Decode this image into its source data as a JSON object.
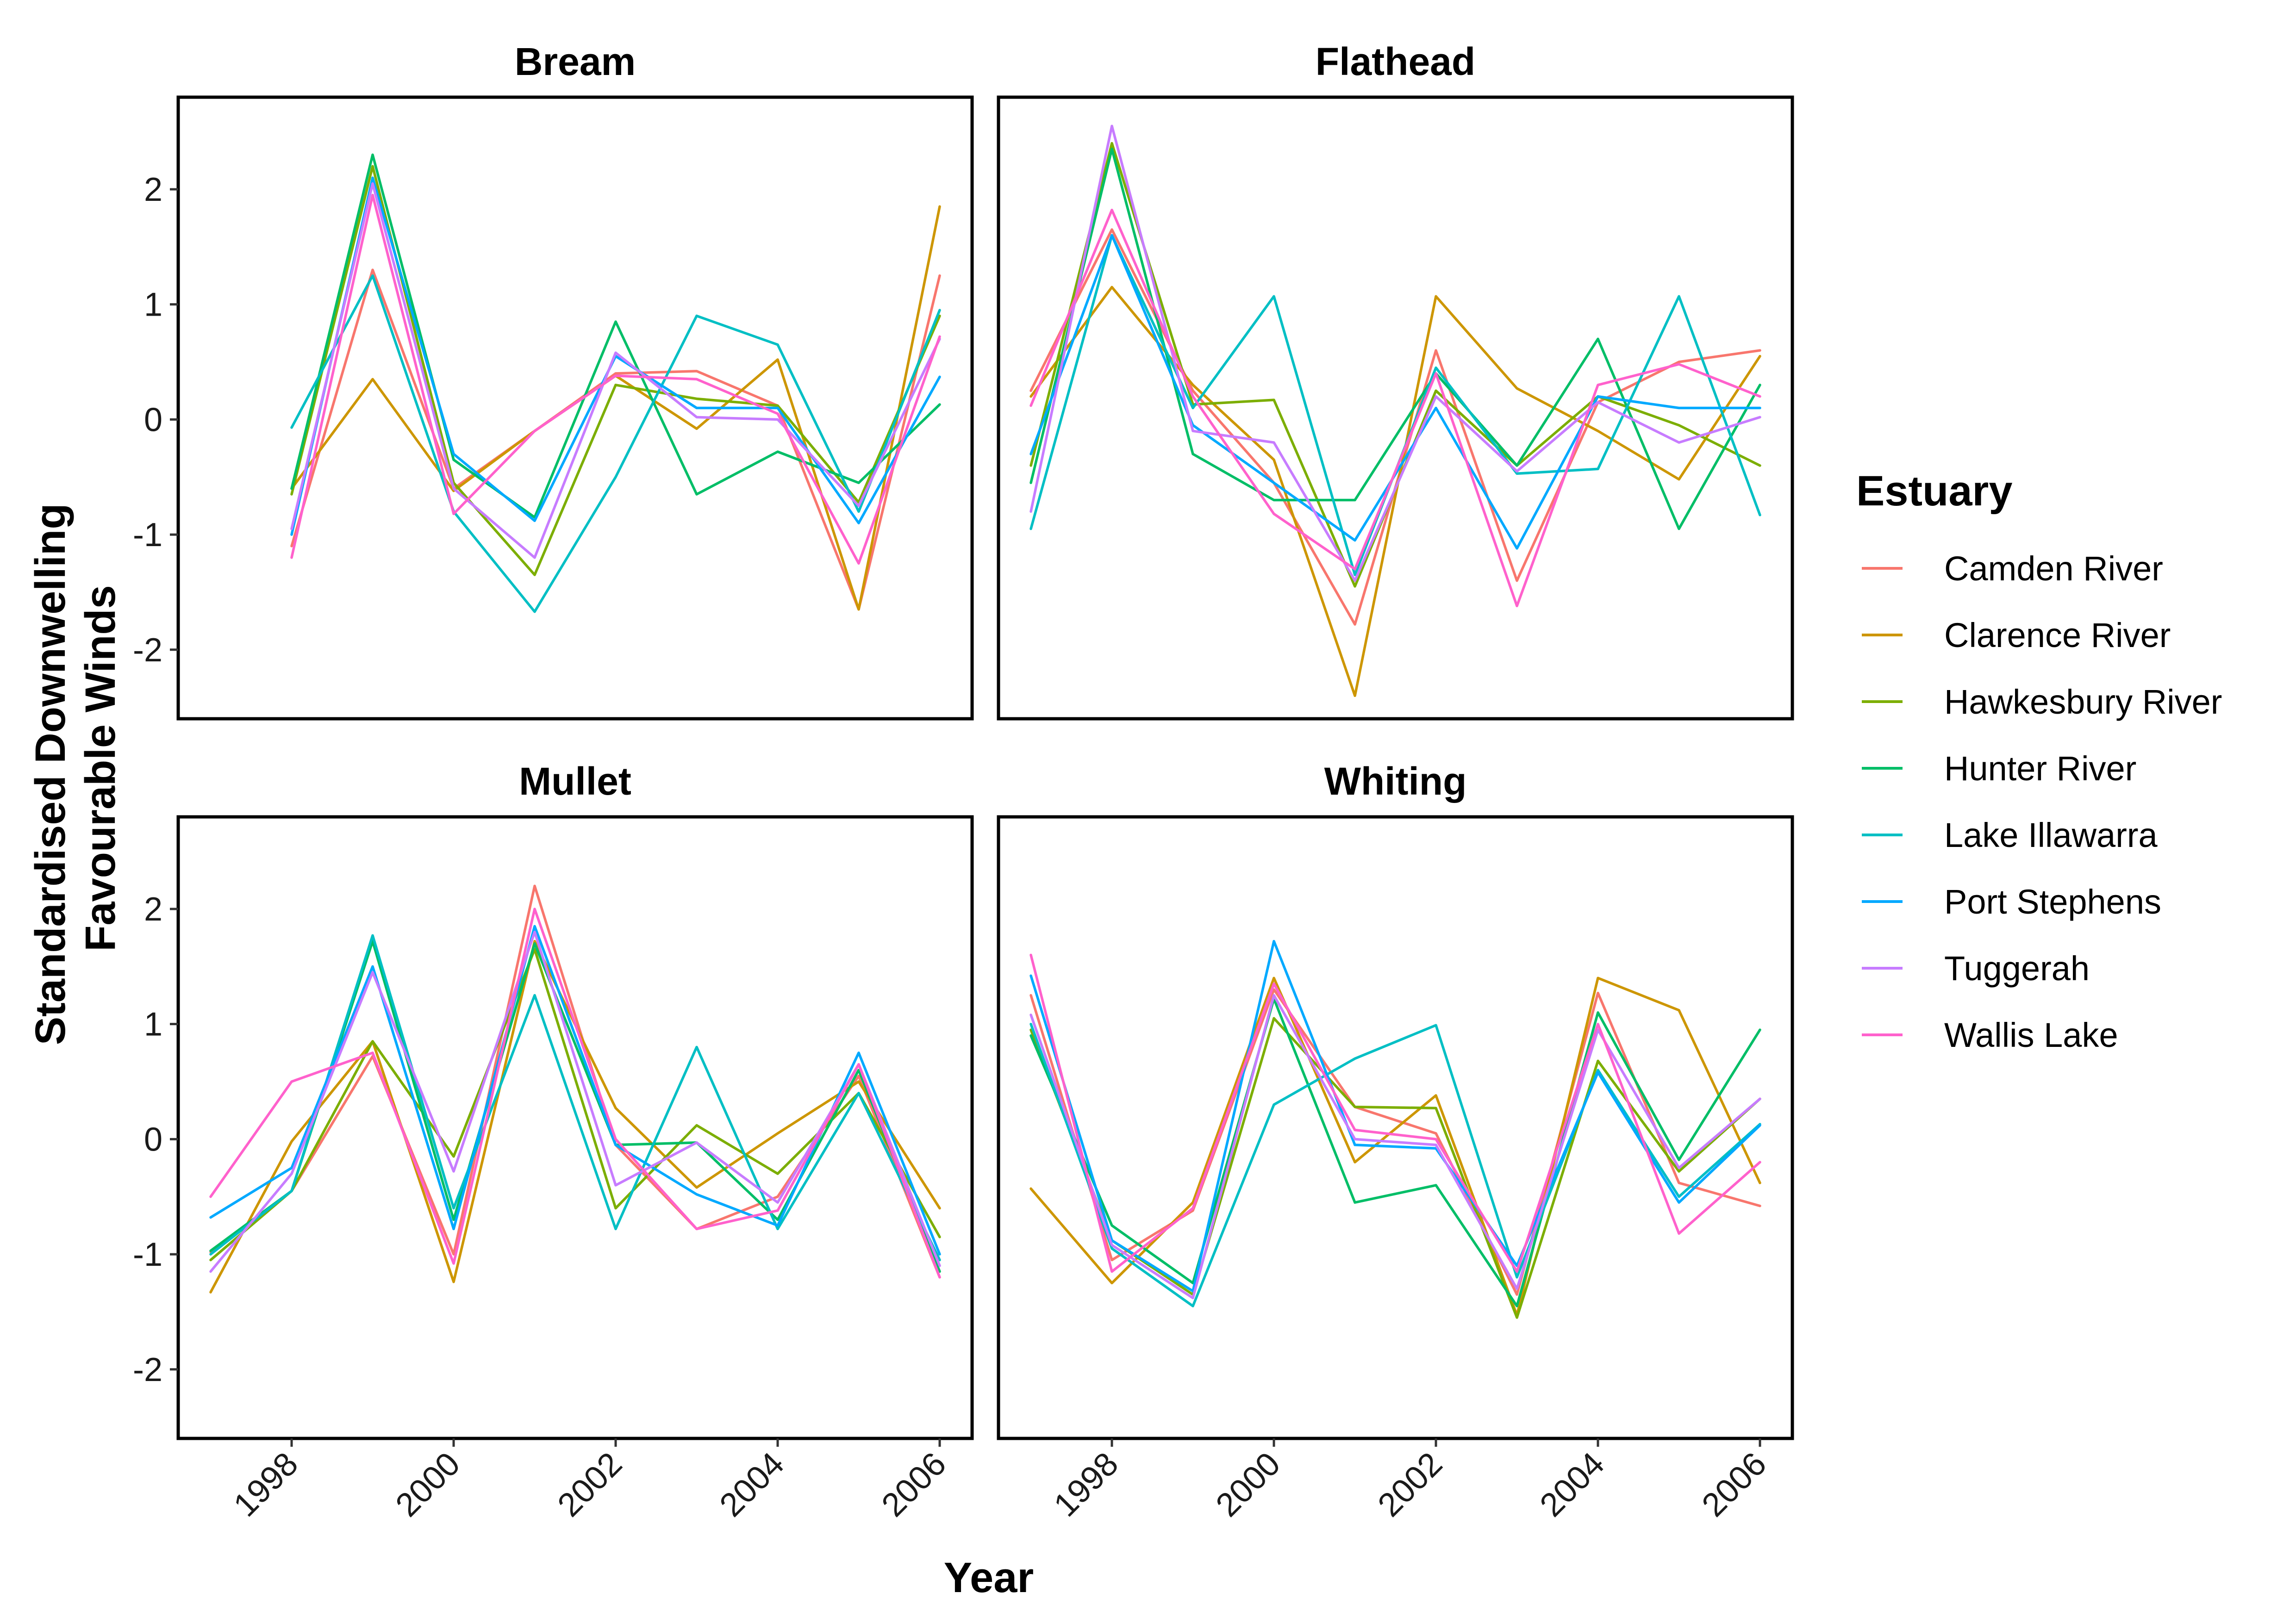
{
  "chart_data": {
    "type": "line",
    "xlabel": "Year",
    "ylabel_lines": [
      "Standardised Downwelling",
      "Favourable Winds"
    ],
    "x": [
      1997,
      1998,
      1999,
      2000,
      2001,
      2002,
      2003,
      2004,
      2005,
      2006
    ],
    "xlim": [
      1996.6,
      2006.4
    ],
    "ylim": [
      -2.6,
      2.8
    ],
    "x_ticks": [
      1998,
      2000,
      2002,
      2004,
      2006
    ],
    "y_ticks": [
      -2,
      -1,
      0,
      1,
      2
    ],
    "grid": false,
    "legend": {
      "title": "Estuary",
      "position": "right"
    },
    "colors": {
      "Camden River": "#F8766D",
      "Clarence River": "#CD9600",
      "Hawkesbury River": "#7CAE00",
      "Hunter River": "#00BE67",
      "Lake Illawarra": "#00BFC4",
      "Port Stephens": "#00A9FF",
      "Tuggerah": "#C77CFF",
      "Wallis Lake": "#FF61CC"
    },
    "panels": [
      {
        "title": "Bream",
        "series": [
          {
            "name": "Camden River",
            "values": [
              null,
              -1.1,
              1.3,
              -0.6,
              -0.1,
              0.4,
              0.42,
              0.12,
              -1.65,
              1.25
            ]
          },
          {
            "name": "Clarence River",
            "values": [
              null,
              -0.6,
              0.35,
              -0.62,
              -0.1,
              0.38,
              -0.08,
              0.52,
              -1.65,
              1.85
            ]
          },
          {
            "name": "Hawkesbury River",
            "values": [
              null,
              -0.65,
              2.2,
              -0.55,
              -1.35,
              0.3,
              0.18,
              0.12,
              -0.72,
              0.9
            ]
          },
          {
            "name": "Hunter River",
            "values": [
              null,
              -0.6,
              2.3,
              -0.35,
              -0.85,
              0.85,
              -0.65,
              -0.28,
              -0.55,
              0.13
            ]
          },
          {
            "name": "Lake Illawarra",
            "values": [
              null,
              -0.07,
              1.25,
              -0.8,
              -1.67,
              -0.5,
              0.9,
              0.65,
              -0.8,
              0.95
            ]
          },
          {
            "name": "Port Stephens",
            "values": [
              null,
              -1.0,
              2.1,
              -0.3,
              -0.88,
              0.55,
              0.1,
              0.1,
              -0.9,
              0.37
            ]
          },
          {
            "name": "Tuggerah",
            "values": [
              null,
              -0.95,
              2.05,
              -0.6,
              -1.2,
              0.58,
              0.02,
              0.0,
              -0.75,
              0.7
            ]
          },
          {
            "name": "Wallis Lake",
            "values": [
              null,
              -1.2,
              1.95,
              -0.82,
              -0.1,
              0.38,
              0.35,
              0.05,
              -1.25,
              0.72
            ]
          }
        ]
      },
      {
        "title": "Flathead",
        "series": [
          {
            "name": "Camden River",
            "values": [
              0.25,
              1.65,
              0.25,
              -0.55,
              -1.78,
              0.6,
              -1.4,
              0.15,
              0.5,
              0.6
            ]
          },
          {
            "name": "Clarence River",
            "values": [
              0.2,
              1.15,
              0.3,
              -0.35,
              -2.4,
              1.07,
              0.27,
              -0.1,
              -0.52,
              0.55
            ]
          },
          {
            "name": "Hawkesbury River",
            "values": [
              -0.4,
              2.4,
              0.13,
              0.17,
              -1.45,
              0.25,
              -0.4,
              0.2,
              -0.05,
              -0.4
            ]
          },
          {
            "name": "Hunter River",
            "values": [
              -0.55,
              2.35,
              -0.3,
              -0.7,
              -0.7,
              0.4,
              -0.4,
              0.7,
              -0.95,
              0.3
            ]
          },
          {
            "name": "Lake Illawarra",
            "values": [
              -0.95,
              1.6,
              0.1,
              1.07,
              -1.35,
              0.45,
              -0.47,
              -0.43,
              1.07,
              -0.83
            ]
          },
          {
            "name": "Port Stephens",
            "values": [
              -0.3,
              1.6,
              -0.05,
              -0.55,
              -1.05,
              0.1,
              -1.12,
              0.2,
              0.1,
              0.1
            ]
          },
          {
            "name": "Tuggerah",
            "values": [
              -0.8,
              2.55,
              -0.1,
              -0.2,
              -1.4,
              0.2,
              -0.45,
              0.15,
              -0.2,
              0.02
            ]
          },
          {
            "name": "Wallis Lake",
            "values": [
              0.12,
              1.82,
              0.2,
              -0.82,
              -1.3,
              0.4,
              -1.62,
              0.3,
              0.48,
              0.2
            ]
          }
        ]
      },
      {
        "title": "Mullet",
        "series": [
          {
            "name": "Camden River",
            "values": [
              -0.98,
              -0.45,
              0.72,
              -1.0,
              2.2,
              -0.05,
              -0.78,
              -0.5,
              0.55,
              -1.2
            ]
          },
          {
            "name": "Clarence River",
            "values": [
              -1.33,
              -0.02,
              0.85,
              -1.24,
              1.72,
              0.27,
              -0.42,
              0.05,
              0.5,
              -0.6
            ]
          },
          {
            "name": "Hawkesbury River",
            "values": [
              -1.05,
              -0.45,
              0.85,
              -0.15,
              1.65,
              -0.6,
              0.12,
              -0.3,
              0.4,
              -0.85
            ]
          },
          {
            "name": "Hunter River",
            "values": [
              -0.97,
              -0.45,
              1.72,
              -0.7,
              1.7,
              -0.05,
              -0.03,
              -0.7,
              0.6,
              -1.15
            ]
          },
          {
            "name": "Lake Illawarra",
            "values": [
              -1.0,
              -0.45,
              1.77,
              -0.6,
              1.25,
              -0.78,
              0.8,
              -0.78,
              0.4,
              -1.05
            ]
          },
          {
            "name": "Port Stephens",
            "values": [
              -0.68,
              -0.25,
              1.5,
              -0.78,
              1.85,
              -0.05,
              -0.48,
              -0.75,
              0.75,
              -1.0
            ]
          },
          {
            "name": "Tuggerah",
            "values": [
              -1.15,
              -0.3,
              1.45,
              -0.28,
              1.8,
              -0.4,
              -0.03,
              -0.55,
              0.65,
              -1.1
            ]
          },
          {
            "name": "Wallis Lake",
            "values": [
              -0.5,
              0.5,
              0.75,
              -1.08,
              2.0,
              0.0,
              -0.78,
              -0.62,
              0.65,
              -1.2
            ]
          }
        ]
      },
      {
        "title": "Whiting",
        "series": [
          {
            "name": "Camden River",
            "values": [
              1.25,
              -1.05,
              -0.62,
              1.3,
              0.28,
              0.05,
              -1.35,
              1.27,
              -0.38,
              -0.58
            ]
          },
          {
            "name": "Clarence River",
            "values": [
              -0.43,
              -1.25,
              -0.55,
              1.4,
              -0.2,
              0.38,
              -1.53,
              1.4,
              1.12,
              -0.38
            ]
          },
          {
            "name": "Hawkesbury River",
            "values": [
              0.95,
              -0.88,
              -1.35,
              1.05,
              0.28,
              0.27,
              -1.55,
              0.68,
              -0.28,
              0.35
            ]
          },
          {
            "name": "Hunter River",
            "values": [
              0.9,
              -0.75,
              -1.25,
              1.22,
              -0.55,
              -0.4,
              -1.45,
              1.1,
              -0.18,
              0.95
            ]
          },
          {
            "name": "Lake Illawarra",
            "values": [
              1.0,
              -0.95,
              -1.45,
              0.3,
              0.7,
              0.99,
              -1.2,
              0.6,
              -0.5,
              0.13
            ]
          },
          {
            "name": "Port Stephens",
            "values": [
              1.42,
              -0.88,
              -1.32,
              1.72,
              -0.05,
              -0.08,
              -1.1,
              0.58,
              -0.55,
              0.12
            ]
          },
          {
            "name": "Tuggerah",
            "values": [
              1.08,
              -0.92,
              -1.38,
              1.25,
              0.0,
              -0.05,
              -1.3,
              0.95,
              -0.25,
              0.35
            ]
          },
          {
            "name": "Wallis Lake",
            "values": [
              1.6,
              -1.15,
              -0.6,
              1.35,
              0.08,
              0.0,
              -1.15,
              1.0,
              -0.82,
              -0.2
            ]
          }
        ]
      }
    ]
  }
}
